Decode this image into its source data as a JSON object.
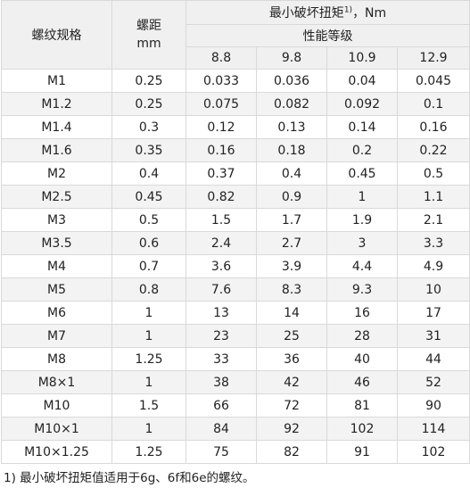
{
  "header": {
    "spec_label": "螺纹规格",
    "pitch_label": "螺距",
    "pitch_unit": "mm",
    "torque_label": "最小破坏扭矩",
    "torque_sup": "1)",
    "torque_unit": "，Nm",
    "grade_label": "性能等级",
    "grades": [
      "8.8",
      "9.8",
      "10.9",
      "12.9"
    ]
  },
  "rows": [
    {
      "spec": "M1",
      "pitch": "0.25",
      "v": [
        "0.033",
        "0.036",
        "0.04",
        "0.045"
      ]
    },
    {
      "spec": "M1.2",
      "pitch": "0.25",
      "v": [
        "0.075",
        "0.082",
        "0.092",
        "0.1"
      ]
    },
    {
      "spec": "M1.4",
      "pitch": "0.3",
      "v": [
        "0.12",
        "0.13",
        "0.14",
        "0.16"
      ]
    },
    {
      "spec": "M1.6",
      "pitch": "0.35",
      "v": [
        "0.16",
        "0.18",
        "0.2",
        "0.22"
      ]
    },
    {
      "spec": "M2",
      "pitch": "0.4",
      "v": [
        "0.37",
        "0.4",
        "0.45",
        "0.5"
      ]
    },
    {
      "spec": "M2.5",
      "pitch": "0.45",
      "v": [
        "0.82",
        "0.9",
        "1",
        "1.1"
      ]
    },
    {
      "spec": "M3",
      "pitch": "0.5",
      "v": [
        "1.5",
        "1.7",
        "1.9",
        "2.1"
      ]
    },
    {
      "spec": "M3.5",
      "pitch": "0.6",
      "v": [
        "2.4",
        "2.7",
        "3",
        "3.3"
      ]
    },
    {
      "spec": "M4",
      "pitch": "0.7",
      "v": [
        "3.6",
        "3.9",
        "4.4",
        "4.9"
      ]
    },
    {
      "spec": "M5",
      "pitch": "0.8",
      "v": [
        "7.6",
        "8.3",
        "9.3",
        "10"
      ]
    },
    {
      "spec": "M6",
      "pitch": "1",
      "v": [
        "13",
        "14",
        "16",
        "17"
      ]
    },
    {
      "spec": "M7",
      "pitch": "1",
      "v": [
        "23",
        "25",
        "28",
        "31"
      ]
    },
    {
      "spec": "M8",
      "pitch": "1.25",
      "v": [
        "33",
        "36",
        "40",
        "44"
      ]
    },
    {
      "spec": "M8×1",
      "pitch": "1",
      "v": [
        "38",
        "42",
        "46",
        "52"
      ]
    },
    {
      "spec": "M10",
      "pitch": "1.5",
      "v": [
        "66",
        "72",
        "81",
        "90"
      ]
    },
    {
      "spec": "M10×1",
      "pitch": "1",
      "v": [
        "84",
        "92",
        "102",
        "114"
      ]
    },
    {
      "spec": "M10×1.25",
      "pitch": "1.25",
      "v": [
        "75",
        "82",
        "91",
        "102"
      ]
    }
  ],
  "footnote": "1) 最小破坏扭矩值适用于6g、6f和6e的螺纹。"
}
